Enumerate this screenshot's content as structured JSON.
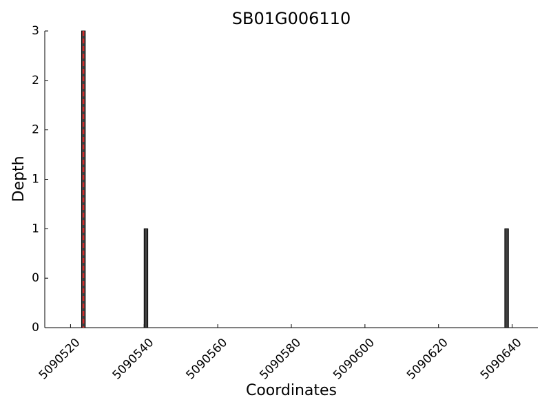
{
  "chart_data": {
    "type": "bar",
    "title": "SB01G006110",
    "x_label": "Coordinates",
    "y_label": "Depth",
    "x": [
      5090523,
      5090540,
      5090638
    ],
    "values": [
      3,
      1,
      1
    ],
    "bar_width": 1,
    "color": "#404040",
    "edge_color": "#000000",
    "vline": {
      "x": 5090523.5,
      "color": "#d62728"
    },
    "xlim": [
      5090513,
      5090647
    ],
    "xticks": [
      5090520,
      5090540,
      5090560,
      5090580,
      5090600,
      5090620,
      5090640
    ],
    "ylim": [
      0,
      3
    ],
    "yticks": [
      0,
      {
        "value": 0.5,
        "label": "0"
      },
      1,
      {
        "value": 1.5,
        "label": "1"
      },
      2,
      {
        "value": 2.5,
        "label": "2"
      },
      3
    ]
  }
}
